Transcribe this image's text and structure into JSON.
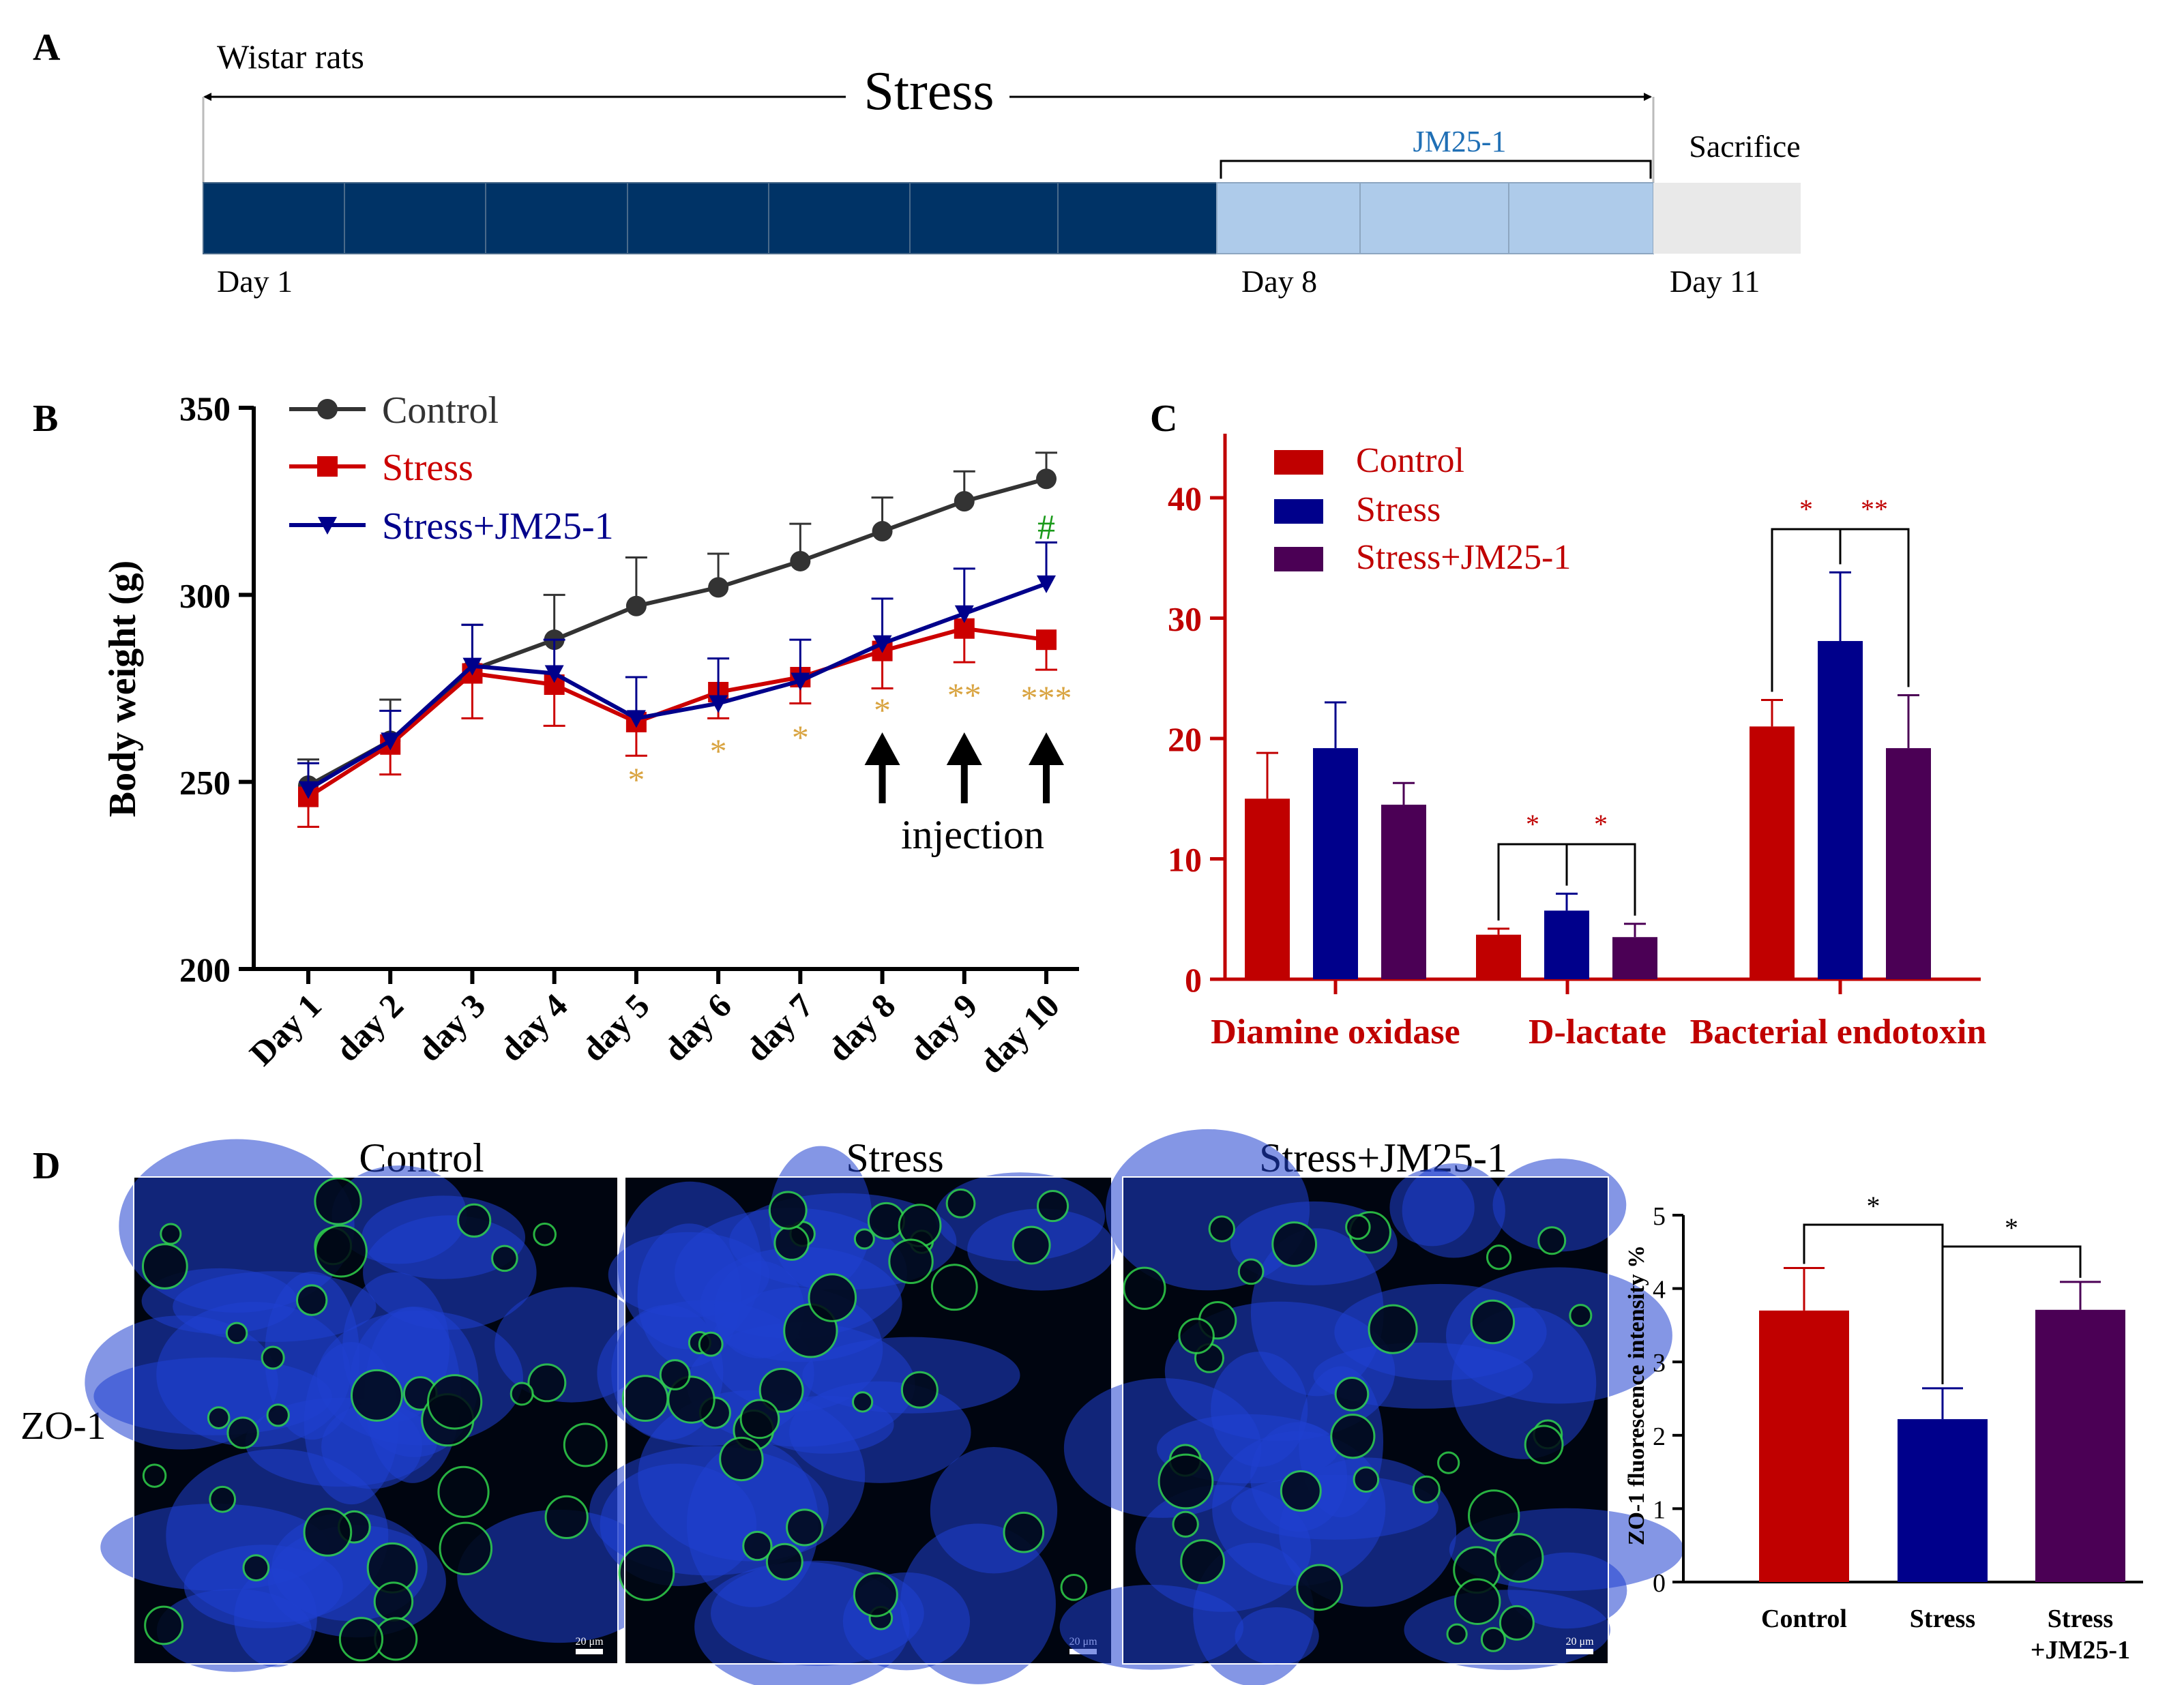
{
  "panels": {
    "A": {
      "label": "A",
      "subject": "Wistar rats",
      "stress_label": "Stress",
      "treatment_label": "JM25-1",
      "end_label": "Sacrifice",
      "day_labels": [
        "Day 1",
        "Day 8",
        "Day 11"
      ],
      "colors": {
        "stress": "#003366",
        "treatment": "#aecbea",
        "end": "#e9e9e9"
      }
    },
    "B": {
      "label": "B",
      "annotation": "injection",
      "hash_mark": "#",
      "stars": [
        "*",
        "*",
        "*",
        "*",
        "**",
        "***"
      ]
    },
    "C": {
      "label": "C"
    },
    "D": {
      "label": "D",
      "row_label": "ZO-1",
      "image_titles": [
        "Control",
        "Stress",
        "Stress+JM25-1"
      ],
      "scale_bar": "20 μm"
    }
  },
  "chart_data": [
    {
      "id": "body-weight",
      "type": "line",
      "xlabel": "",
      "ylabel": "Body weight (g)",
      "categories": [
        "Day 1",
        "day 2",
        "day 3",
        "day 4",
        "day 5",
        "day 6",
        "day 7",
        "day 8",
        "day 9",
        "day 10"
      ],
      "ylim": [
        200,
        350
      ],
      "yticks": [
        200,
        250,
        300,
        350
      ],
      "series": [
        {
          "name": "Control",
          "color": "#333333",
          "marker": "circle",
          "values": [
            249,
            261,
            280,
            288,
            297,
            302,
            309,
            317,
            325,
            331
          ],
          "errors": [
            7,
            11,
            12,
            12,
            13,
            9,
            10,
            9,
            8,
            7
          ]
        },
        {
          "name": "Stress",
          "color": "#cc0000",
          "marker": "square",
          "values": [
            246,
            260,
            279,
            276,
            266,
            274,
            278,
            285,
            291,
            288
          ],
          "errors": [
            8,
            8,
            12,
            11,
            9,
            7,
            7,
            10,
            9,
            8
          ]
        },
        {
          "name": "Stress+JM25-1",
          "color": "#00008b",
          "marker": "triangle-down",
          "values": [
            248,
            261,
            281,
            279,
            267,
            271,
            277,
            287,
            295,
            303
          ],
          "errors": [
            7,
            8,
            11,
            9,
            11,
            12,
            11,
            12,
            12,
            11
          ]
        }
      ],
      "significance": [
        {
          "category": "day 5",
          "mark": "*"
        },
        {
          "category": "day 6",
          "mark": "*"
        },
        {
          "category": "day 7",
          "mark": "*"
        },
        {
          "category": "day 8",
          "mark": "*"
        },
        {
          "category": "day 9",
          "mark": "**"
        },
        {
          "category": "day 10",
          "mark": "***"
        }
      ],
      "arrows_at": [
        "day 8",
        "day 9",
        "day 10"
      ]
    },
    {
      "id": "gut-markers",
      "type": "bar",
      "categories": [
        "Diamine oxidase",
        "D-lactate",
        "Bacterial endotoxin"
      ],
      "ylim": [
        0,
        45
      ],
      "yticks": [
        0,
        10,
        20,
        30,
        40
      ],
      "series": [
        {
          "name": "Control",
          "color": "#c00000",
          "values": [
            15,
            3.7,
            21
          ],
          "errors": [
            3.8,
            0.5,
            2.2
          ]
        },
        {
          "name": "Stress",
          "color": "#00008b",
          "values": [
            19.2,
            5.7,
            28.1
          ],
          "errors": [
            3.8,
            1.4,
            5.7
          ]
        },
        {
          "name": "Stress+JM25-1",
          "color": "#4b0055",
          "values": [
            14.5,
            3.5,
            19.2
          ],
          "errors": [
            1.8,
            1.1,
            4.4
          ]
        }
      ],
      "comparisons": [
        {
          "category": "D-lactate",
          "from": "Control",
          "to": "Stress",
          "mark": "*"
        },
        {
          "category": "D-lactate",
          "from": "Stress",
          "to": "Stress+JM25-1",
          "mark": "*"
        },
        {
          "category": "Bacterial endotoxin",
          "from": "Control",
          "to": "Stress",
          "mark": "*"
        },
        {
          "category": "Bacterial endotoxin",
          "from": "Stress",
          "to": "Stress+JM25-1",
          "mark": "**"
        }
      ]
    },
    {
      "id": "zo1-intensity",
      "type": "bar",
      "ylabel": "ZO-1 fluorescence intensity %",
      "categories": [
        "Control",
        "Stress",
        "Stress\n+JM25-1"
      ],
      "ylim": [
        0,
        5
      ],
      "yticks": [
        0,
        1,
        2,
        3,
        4,
        5
      ],
      "values": [
        3.7,
        2.22,
        3.71
      ],
      "errors": [
        0.58,
        0.42,
        0.38
      ],
      "colors": [
        "#c00000",
        "#00008b",
        "#4b0055"
      ],
      "comparisons": [
        {
          "from": "Control",
          "to": "Stress",
          "mark": "*"
        },
        {
          "from": "Stress",
          "to": "Stress\n+JM25-1",
          "mark": "*"
        }
      ]
    }
  ]
}
